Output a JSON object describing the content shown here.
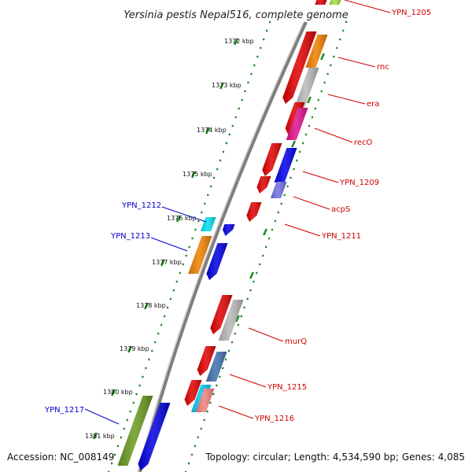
{
  "title": "Yersinia pestis Nepal516, complete genome",
  "accession": "Accession: NC_008149",
  "topology": "Topology: circular; Length: 4,534,590 bp; Genes: 4,085",
  "colors": {
    "forward_label": "#d00000",
    "reverse_label": "#0000c8",
    "tick": "#1a8a1a",
    "backbone": "#808080"
  },
  "ticks": [
    "1372 kbp",
    "1373 kbp",
    "1374 kbp",
    "1375 kbp",
    "1376 kbp",
    "1377 kbp",
    "1378 kbp",
    "1379 kbp",
    "1380 kbp",
    "1381 kbp"
  ],
  "gene_labels_right": [
    "YPN_1205",
    "rnc",
    "era",
    "recO",
    "YPN_1209",
    "acpS",
    "YPN_1211",
    "murQ",
    "YPN_1215",
    "YPN_1216"
  ],
  "gene_labels_left": [
    "YPN_1212",
    "YPN_1213",
    "YPN_1217"
  ]
}
